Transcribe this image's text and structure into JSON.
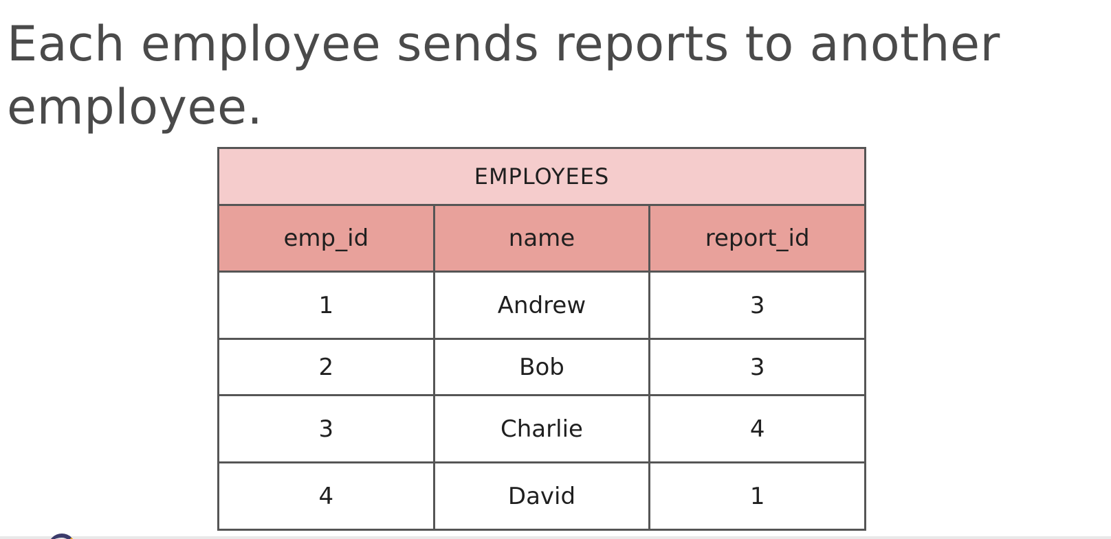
{
  "slide": {
    "title": "Each employee sends reports to another employee."
  },
  "table": {
    "caption": "EMPLOYEES",
    "headers": [
      "emp_id",
      "name",
      "report_id"
    ],
    "rows": [
      [
        "1",
        "Andrew",
        "3"
      ],
      [
        "2",
        "Bob",
        "3"
      ],
      [
        "3",
        "Charlie",
        "4"
      ],
      [
        "4",
        "David",
        "1"
      ]
    ]
  },
  "colors": {
    "caption_bg": "#f5cccc",
    "header_bg": "#e8a19b",
    "border": "#555555",
    "title_text": "#4a4a4a"
  },
  "icons": {
    "corner_logo": "brand-logo-icon"
  }
}
